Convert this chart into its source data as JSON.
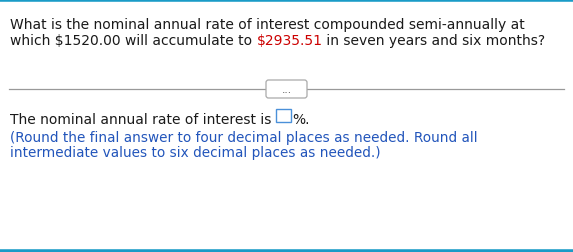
{
  "bg_color": "#ffffff",
  "top_border_color": "#1a9bc7",
  "bottom_border_color": "#1a9bc7",
  "divider_color": "#999999",
  "question_line1": "What is the nominal annual rate of interest compounded semi-annually at",
  "question_line2_pre": "which $1520.00 will accumulate to ",
  "question_line2_highlight": "$2935.51",
  "question_line2_post": " in seven years and six months?",
  "question_color": "#1a1a1a",
  "highlight_color": "#cc0000",
  "answer_pre": "The nominal annual rate of interest is ",
  "answer_suffix": "%.",
  "answer_color": "#1a1a1a",
  "note_line1": "(Round the final answer to four decimal places as needed. Round all",
  "note_line2": "intermediate values to six decimal places as needed.)",
  "note_color": "#2255bb",
  "dots_text": "...",
  "box_edge_color": "#4a90d9",
  "font_size_q": 10.0,
  "font_size_ans": 10.0,
  "font_size_note": 9.8,
  "font_size_dots": 7.5
}
